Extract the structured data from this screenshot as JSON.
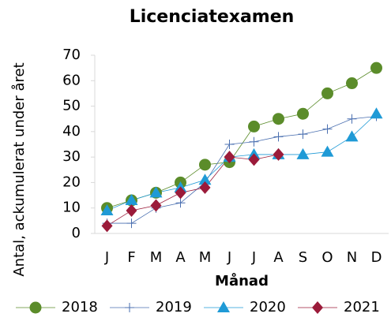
{
  "chart_data": {
    "type": "line",
    "title": "Licenciatexamen",
    "x_label": "Månad",
    "y_label": "Antal, ackumulerat under året",
    "categories": [
      "J",
      "F",
      "M",
      "A",
      "M",
      "J",
      "J",
      "A",
      "S",
      "O",
      "N",
      "D"
    ],
    "series": [
      {
        "name": "2018",
        "color": "#5b8c2a",
        "marker": "circle",
        "values": [
          10,
          13,
          16,
          20,
          27,
          28,
          42,
          45,
          47,
          55,
          59,
          65
        ]
      },
      {
        "name": "2019",
        "color": "#4a6fb0",
        "marker": "plus",
        "values": [
          4,
          4,
          10,
          12,
          20,
          35,
          36,
          38,
          39,
          41,
          45,
          46
        ]
      },
      {
        "name": "2020",
        "color": "#1f9ad6",
        "marker": "triangle",
        "values": [
          9,
          13,
          16,
          18,
          21,
          30,
          31,
          31,
          31,
          32,
          38,
          47
        ]
      },
      {
        "name": "2021",
        "color": "#9b1b3a",
        "marker": "diamond",
        "values": [
          3,
          9,
          11,
          16,
          18,
          30,
          29,
          31,
          null,
          null,
          null,
          null
        ]
      }
    ],
    "ylim": [
      0,
      70
    ],
    "yticks": [
      0,
      10,
      20,
      30,
      40,
      50,
      60,
      70
    ],
    "grid": false,
    "legend": "bottom"
  }
}
